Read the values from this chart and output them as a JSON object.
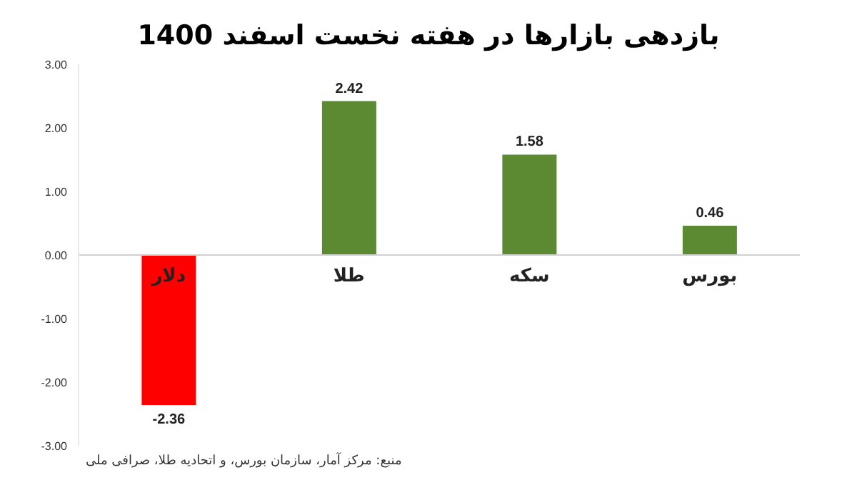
{
  "chart_data": {
    "type": "bar",
    "title": "بازدهی بازارها در هفته نخست اسفند 1400",
    "categories": [
      "دلار",
      "طلا",
      "سکه",
      "بورس"
    ],
    "values": [
      -2.36,
      2.42,
      1.58,
      0.46
    ],
    "colors": [
      "#ff0000",
      "#5b8a33",
      "#5b8a33",
      "#5b8a33"
    ],
    "data_labels": true,
    "ylim": [
      -3,
      3
    ],
    "yticks": [
      {
        "value": -3,
        "label": "-3.00"
      },
      {
        "value": -2,
        "label": "-2.00"
      },
      {
        "value": -1,
        "label": "-1.00"
      },
      {
        "value": 0,
        "label": "0.00"
      },
      {
        "value": 1,
        "label": "1.00"
      },
      {
        "value": 2,
        "label": "2.00"
      },
      {
        "value": 3,
        "label": "3.00"
      }
    ],
    "grid": false,
    "annotations": [
      "منبع: مرکز آمار، سازمان بورس، و اتحادیه طلا، صرافی ملی"
    ]
  }
}
